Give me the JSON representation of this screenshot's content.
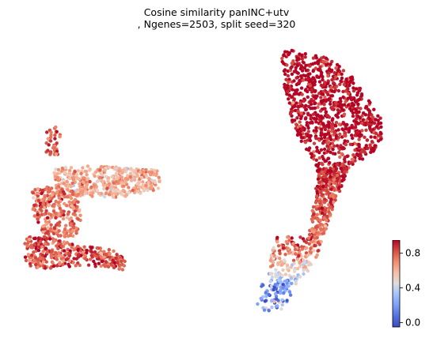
{
  "chart_data": {
    "type": "scatter",
    "title": "Cosine similarity panINC+utv",
    "subtitle": ", Ngenes=2503, split seed=320",
    "xlabel": "",
    "ylabel": "",
    "axes_visible": false,
    "colormap": "coolwarm",
    "color_range": [
      -0.05,
      0.95
    ],
    "colorbar": {
      "ticks": [
        "0.0",
        "0.4",
        "0.8"
      ],
      "tick_values": [
        0.0,
        0.4,
        0.8
      ],
      "placement": "bottom-right"
    },
    "n_points_approx": 2503,
    "clusters": [
      {
        "name": "left-top-nub",
        "value": 0.78,
        "n": 40
      },
      {
        "name": "left-upper-band",
        "value": 0.62,
        "n": 420
      },
      {
        "name": "left-mid-band",
        "value": 0.75,
        "n": 260
      },
      {
        "name": "left-bottom-band",
        "value": 0.82,
        "n": 330
      },
      {
        "name": "right-top-lobe",
        "value": 0.95,
        "n": 900
      },
      {
        "name": "right-stem",
        "value": 0.85,
        "n": 330
      },
      {
        "name": "right-tail",
        "value": 0.55,
        "n": 220
      },
      {
        "name": "right-tip",
        "value": 0.2,
        "n": 60
      }
    ]
  },
  "colors": {
    "low": "#3b4cc0",
    "mid": "#dddddd",
    "high": "#b40426"
  }
}
